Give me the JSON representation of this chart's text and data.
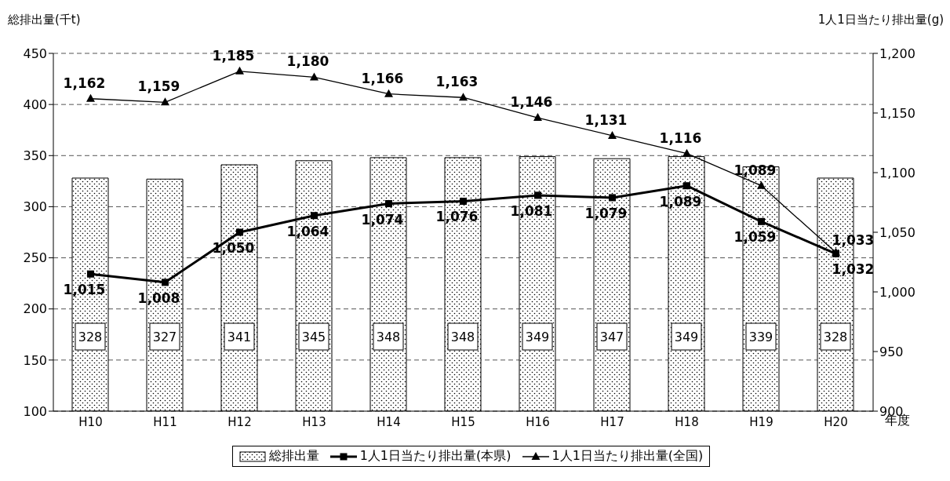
{
  "chart_data": {
    "type": "bar",
    "categories": [
      "H10",
      "H11",
      "H12",
      "H13",
      "H14",
      "H15",
      "H16",
      "H17",
      "H18",
      "H19",
      "H20"
    ],
    "xlabel": "年度",
    "ylabel": "総排出量(千t)",
    "y2label": "1人1日当たり排出量(g)",
    "series": [
      {
        "name": "総排出量",
        "color": "#000000",
        "values": [
          328,
          327,
          341,
          345,
          348,
          348,
          349,
          347,
          349,
          339,
          328
        ]
      },
      {
        "name": "1人1日当たり排出量(本県)",
        "type": "line",
        "axis": "y2",
        "color": "#000000",
        "marker": "square",
        "values": [
          1015,
          1008,
          1050,
          1064,
          1074,
          1076,
          1081,
          1079,
          1089,
          1059,
          1032
        ],
        "value_labels": [
          "1,015",
          "1,008",
          "1,050",
          "1,064",
          "1,074",
          "1,076",
          "1,081",
          "1,079",
          "1,089",
          "1,059",
          "1,032"
        ]
      },
      {
        "name": "1人1日当たり排出量(全国)",
        "type": "line",
        "axis": "y2",
        "color": "#000000",
        "marker": "triangle",
        "values": [
          1162,
          1159,
          1185,
          1180,
          1166,
          1163,
          1146,
          1131,
          1116,
          1089,
          1033
        ],
        "value_labels": [
          "1,162",
          "1,159",
          "1,185",
          "1,180",
          "1,166",
          "1,163",
          "1,146",
          "1,131",
          "1,116",
          "1,089",
          "1,033"
        ]
      }
    ],
    "ylim": [
      100,
      450
    ],
    "yticks": [
      100,
      150,
      200,
      250,
      300,
      350,
      400,
      450
    ],
    "y2lim": [
      900,
      1200
    ],
    "y2ticks": [
      900,
      {
        "value": 950,
        "label": "950"
      },
      {
        "value": 1000,
        "label": "1,000"
      },
      {
        "value": 1050,
        "label": "1,050"
      },
      {
        "value": 1100,
        "label": "1,100"
      },
      {
        "value": 1150,
        "label": "1,150"
      },
      {
        "value": 1200,
        "label": "1,200"
      }
    ],
    "grid": "y",
    "legend": "bottom",
    "data_labels": true,
    "line_style": "solid"
  }
}
